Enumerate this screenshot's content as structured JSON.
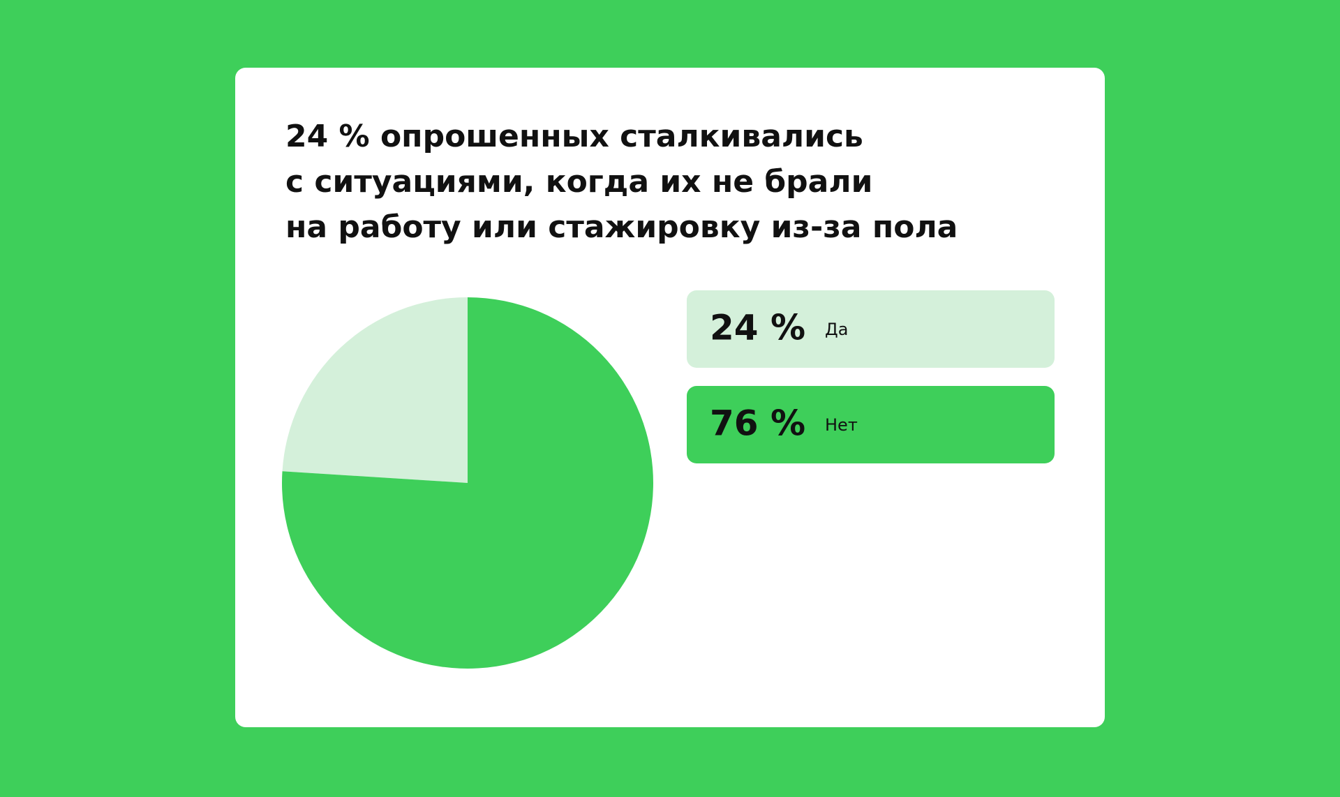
{
  "chart_data": {
    "type": "pie",
    "title": [
      "24 % опрошенных сталкивались",
      "с ситуациями, когда их не брали",
      "на работу или стажировку из-за пола"
    ],
    "categories": [
      "Да",
      "Нет"
    ],
    "values": [
      24,
      76
    ],
    "value_labels": [
      "24 %",
      "76 %"
    ],
    "colors": [
      "#d4f0da",
      "#3ecf5a"
    ]
  }
}
